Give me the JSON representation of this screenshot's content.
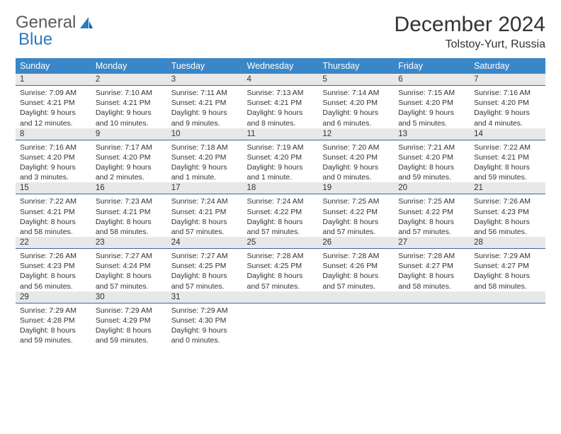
{
  "brand": {
    "part1": "General",
    "part2": "Blue"
  },
  "title": "December 2024",
  "location": "Tolstoy-Yurt, Russia",
  "colors": {
    "header_bg": "#3a87c8",
    "header_text": "#ffffff",
    "daynum_bg": "#e8e8e8",
    "divider": "#3a6a9a",
    "brand_blue": "#2b7ac0",
    "text": "#333333"
  },
  "day_headers": [
    "Sunday",
    "Monday",
    "Tuesday",
    "Wednesday",
    "Thursday",
    "Friday",
    "Saturday"
  ],
  "weeks": [
    [
      {
        "n": "1",
        "sr": "Sunrise: 7:09 AM",
        "ss": "Sunset: 4:21 PM",
        "d1": "Daylight: 9 hours",
        "d2": "and 12 minutes."
      },
      {
        "n": "2",
        "sr": "Sunrise: 7:10 AM",
        "ss": "Sunset: 4:21 PM",
        "d1": "Daylight: 9 hours",
        "d2": "and 10 minutes."
      },
      {
        "n": "3",
        "sr": "Sunrise: 7:11 AM",
        "ss": "Sunset: 4:21 PM",
        "d1": "Daylight: 9 hours",
        "d2": "and 9 minutes."
      },
      {
        "n": "4",
        "sr": "Sunrise: 7:13 AM",
        "ss": "Sunset: 4:21 PM",
        "d1": "Daylight: 9 hours",
        "d2": "and 8 minutes."
      },
      {
        "n": "5",
        "sr": "Sunrise: 7:14 AM",
        "ss": "Sunset: 4:20 PM",
        "d1": "Daylight: 9 hours",
        "d2": "and 6 minutes."
      },
      {
        "n": "6",
        "sr": "Sunrise: 7:15 AM",
        "ss": "Sunset: 4:20 PM",
        "d1": "Daylight: 9 hours",
        "d2": "and 5 minutes."
      },
      {
        "n": "7",
        "sr": "Sunrise: 7:16 AM",
        "ss": "Sunset: 4:20 PM",
        "d1": "Daylight: 9 hours",
        "d2": "and 4 minutes."
      }
    ],
    [
      {
        "n": "8",
        "sr": "Sunrise: 7:16 AM",
        "ss": "Sunset: 4:20 PM",
        "d1": "Daylight: 9 hours",
        "d2": "and 3 minutes."
      },
      {
        "n": "9",
        "sr": "Sunrise: 7:17 AM",
        "ss": "Sunset: 4:20 PM",
        "d1": "Daylight: 9 hours",
        "d2": "and 2 minutes."
      },
      {
        "n": "10",
        "sr": "Sunrise: 7:18 AM",
        "ss": "Sunset: 4:20 PM",
        "d1": "Daylight: 9 hours",
        "d2": "and 1 minute."
      },
      {
        "n": "11",
        "sr": "Sunrise: 7:19 AM",
        "ss": "Sunset: 4:20 PM",
        "d1": "Daylight: 9 hours",
        "d2": "and 1 minute."
      },
      {
        "n": "12",
        "sr": "Sunrise: 7:20 AM",
        "ss": "Sunset: 4:20 PM",
        "d1": "Daylight: 9 hours",
        "d2": "and 0 minutes."
      },
      {
        "n": "13",
        "sr": "Sunrise: 7:21 AM",
        "ss": "Sunset: 4:20 PM",
        "d1": "Daylight: 8 hours",
        "d2": "and 59 minutes."
      },
      {
        "n": "14",
        "sr": "Sunrise: 7:22 AM",
        "ss": "Sunset: 4:21 PM",
        "d1": "Daylight: 8 hours",
        "d2": "and 59 minutes."
      }
    ],
    [
      {
        "n": "15",
        "sr": "Sunrise: 7:22 AM",
        "ss": "Sunset: 4:21 PM",
        "d1": "Daylight: 8 hours",
        "d2": "and 58 minutes."
      },
      {
        "n": "16",
        "sr": "Sunrise: 7:23 AM",
        "ss": "Sunset: 4:21 PM",
        "d1": "Daylight: 8 hours",
        "d2": "and 58 minutes."
      },
      {
        "n": "17",
        "sr": "Sunrise: 7:24 AM",
        "ss": "Sunset: 4:21 PM",
        "d1": "Daylight: 8 hours",
        "d2": "and 57 minutes."
      },
      {
        "n": "18",
        "sr": "Sunrise: 7:24 AM",
        "ss": "Sunset: 4:22 PM",
        "d1": "Daylight: 8 hours",
        "d2": "and 57 minutes."
      },
      {
        "n": "19",
        "sr": "Sunrise: 7:25 AM",
        "ss": "Sunset: 4:22 PM",
        "d1": "Daylight: 8 hours",
        "d2": "and 57 minutes."
      },
      {
        "n": "20",
        "sr": "Sunrise: 7:25 AM",
        "ss": "Sunset: 4:22 PM",
        "d1": "Daylight: 8 hours",
        "d2": "and 57 minutes."
      },
      {
        "n": "21",
        "sr": "Sunrise: 7:26 AM",
        "ss": "Sunset: 4:23 PM",
        "d1": "Daylight: 8 hours",
        "d2": "and 56 minutes."
      }
    ],
    [
      {
        "n": "22",
        "sr": "Sunrise: 7:26 AM",
        "ss": "Sunset: 4:23 PM",
        "d1": "Daylight: 8 hours",
        "d2": "and 56 minutes."
      },
      {
        "n": "23",
        "sr": "Sunrise: 7:27 AM",
        "ss": "Sunset: 4:24 PM",
        "d1": "Daylight: 8 hours",
        "d2": "and 57 minutes."
      },
      {
        "n": "24",
        "sr": "Sunrise: 7:27 AM",
        "ss": "Sunset: 4:25 PM",
        "d1": "Daylight: 8 hours",
        "d2": "and 57 minutes."
      },
      {
        "n": "25",
        "sr": "Sunrise: 7:28 AM",
        "ss": "Sunset: 4:25 PM",
        "d1": "Daylight: 8 hours",
        "d2": "and 57 minutes."
      },
      {
        "n": "26",
        "sr": "Sunrise: 7:28 AM",
        "ss": "Sunset: 4:26 PM",
        "d1": "Daylight: 8 hours",
        "d2": "and 57 minutes."
      },
      {
        "n": "27",
        "sr": "Sunrise: 7:28 AM",
        "ss": "Sunset: 4:27 PM",
        "d1": "Daylight: 8 hours",
        "d2": "and 58 minutes."
      },
      {
        "n": "28",
        "sr": "Sunrise: 7:29 AM",
        "ss": "Sunset: 4:27 PM",
        "d1": "Daylight: 8 hours",
        "d2": "and 58 minutes."
      }
    ],
    [
      {
        "n": "29",
        "sr": "Sunrise: 7:29 AM",
        "ss": "Sunset: 4:28 PM",
        "d1": "Daylight: 8 hours",
        "d2": "and 59 minutes."
      },
      {
        "n": "30",
        "sr": "Sunrise: 7:29 AM",
        "ss": "Sunset: 4:29 PM",
        "d1": "Daylight: 8 hours",
        "d2": "and 59 minutes."
      },
      {
        "n": "31",
        "sr": "Sunrise: 7:29 AM",
        "ss": "Sunset: 4:30 PM",
        "d1": "Daylight: 9 hours",
        "d2": "and 0 minutes."
      },
      null,
      null,
      null,
      null
    ]
  ]
}
